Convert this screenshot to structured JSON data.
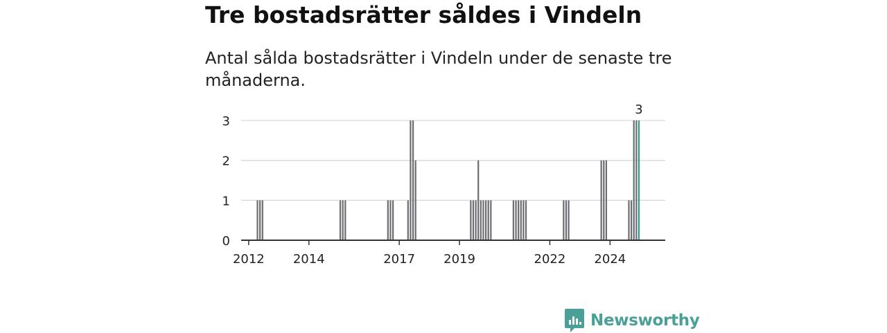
{
  "title": "Tre bostadsrätter såldes i Vindeln",
  "subtitle": "Antal sålda bostadsrätter i Vindeln under de senaste tre månaderna.",
  "brand": {
    "name": "Newsworthy",
    "icon": "newsworthy-logo-icon",
    "color": "#4aa097"
  },
  "colors": {
    "bar": "#6e6d72",
    "highlight": "#2a9d8f",
    "grid": "#d9d9d9",
    "axis": "#333333"
  },
  "chart_data": {
    "type": "bar",
    "title": "Tre bostadsrätter såldes i Vindeln",
    "subtitle": "Antal sålda bostadsrätter i Vindeln under de senaste tre månaderna.",
    "xlabel": "",
    "ylabel": "",
    "x_unit": "month",
    "xlim": [
      "2011-10",
      "2025-11"
    ],
    "ylim": [
      0,
      3
    ],
    "yticks": [
      0,
      1,
      2,
      3
    ],
    "xticks": [
      "2012",
      "2014",
      "2017",
      "2019",
      "2022",
      "2024"
    ],
    "grid": true,
    "legend": "none",
    "highlight_label": "3",
    "series": [
      {
        "data": [
          {
            "x": "2012-04",
            "y": 1
          },
          {
            "x": "2012-05",
            "y": 1
          },
          {
            "x": "2012-06",
            "y": 1
          },
          {
            "x": "2015-01",
            "y": 1
          },
          {
            "x": "2015-02",
            "y": 1
          },
          {
            "x": "2015-03",
            "y": 1
          },
          {
            "x": "2016-08",
            "y": 1
          },
          {
            "x": "2016-09",
            "y": 1
          },
          {
            "x": "2016-10",
            "y": 1
          },
          {
            "x": "2017-04",
            "y": 1
          },
          {
            "x": "2017-05",
            "y": 3
          },
          {
            "x": "2017-06",
            "y": 3
          },
          {
            "x": "2017-07",
            "y": 2
          },
          {
            "x": "2019-05",
            "y": 1
          },
          {
            "x": "2019-06",
            "y": 1
          },
          {
            "x": "2019-07",
            "y": 1
          },
          {
            "x": "2019-08",
            "y": 2
          },
          {
            "x": "2019-09",
            "y": 1
          },
          {
            "x": "2019-10",
            "y": 1
          },
          {
            "x": "2019-11",
            "y": 1
          },
          {
            "x": "2019-12",
            "y": 1
          },
          {
            "x": "2020-01",
            "y": 1
          },
          {
            "x": "2020-10",
            "y": 1
          },
          {
            "x": "2020-11",
            "y": 1
          },
          {
            "x": "2020-12",
            "y": 1
          },
          {
            "x": "2021-01",
            "y": 1
          },
          {
            "x": "2021-02",
            "y": 1
          },
          {
            "x": "2021-03",
            "y": 1
          },
          {
            "x": "2022-06",
            "y": 1
          },
          {
            "x": "2022-07",
            "y": 1
          },
          {
            "x": "2022-08",
            "y": 1
          },
          {
            "x": "2023-09",
            "y": 2
          },
          {
            "x": "2023-10",
            "y": 2
          },
          {
            "x": "2023-11",
            "y": 2
          },
          {
            "x": "2024-08",
            "y": 1
          },
          {
            "x": "2024-09",
            "y": 1
          },
          {
            "x": "2024-10",
            "y": 3
          },
          {
            "x": "2024-11",
            "y": 3
          },
          {
            "x": "2024-12",
            "y": 3,
            "highlight": true
          }
        ]
      }
    ]
  }
}
